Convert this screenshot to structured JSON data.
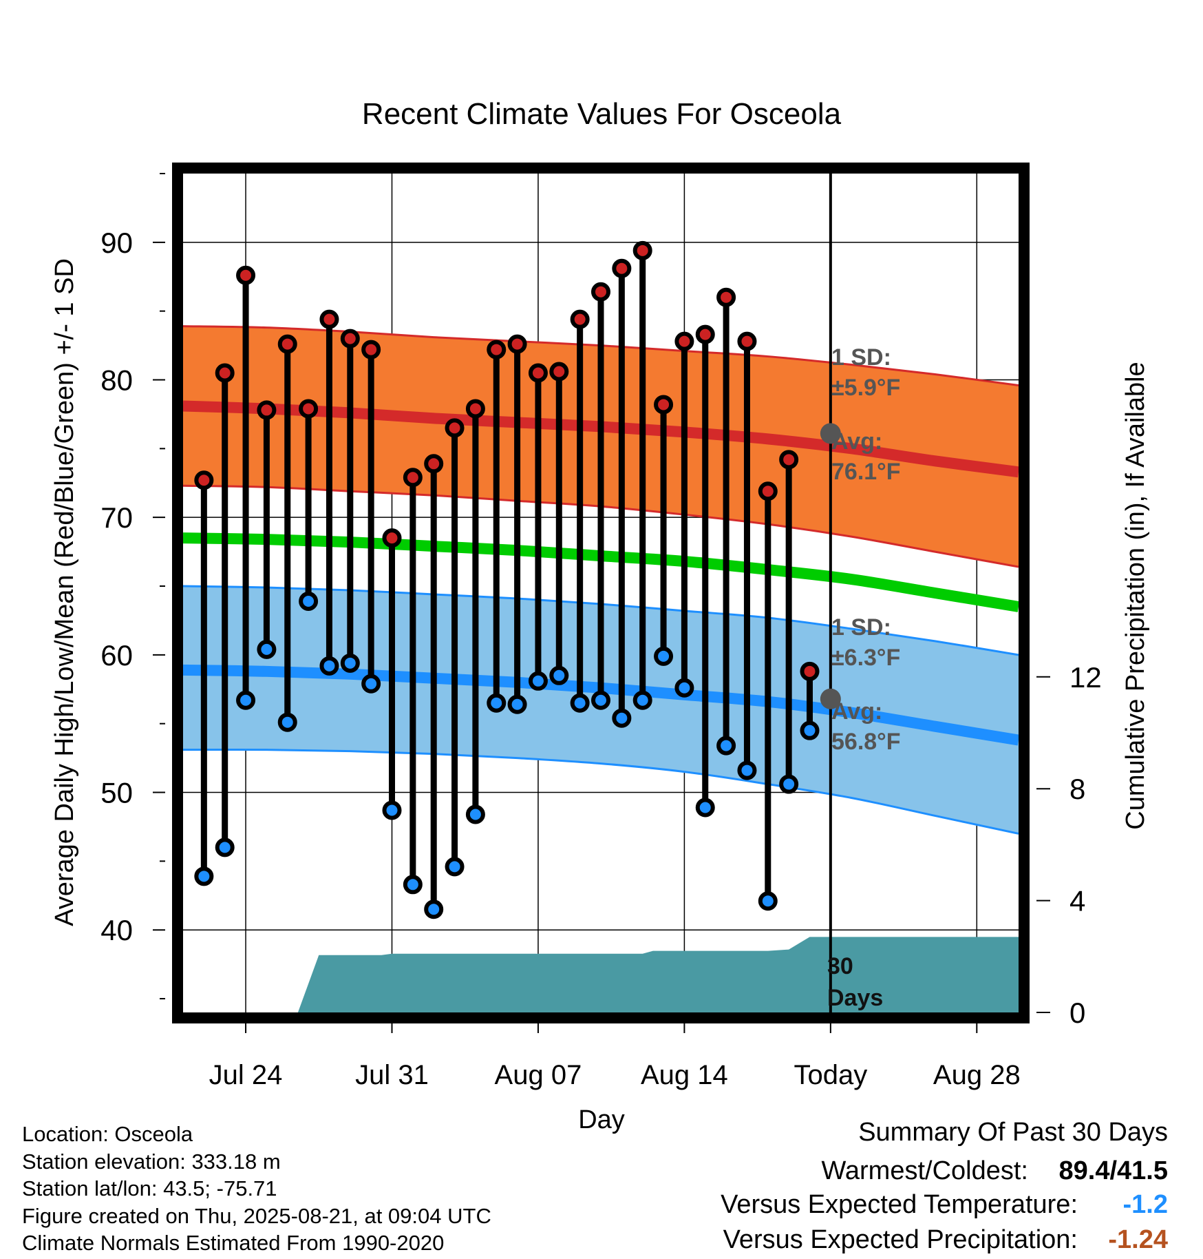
{
  "chart_data": {
    "type": "line",
    "title": "Recent Climate Values For Osceola",
    "xlabel": "Day",
    "ylabel": "Average Daily High/Low/Mean (Red/Blue/Green) +/- 1 SD",
    "y2label": "Cumulative Precipitation (in), If Available",
    "ylim": [
      34,
      95
    ],
    "y2lim": [
      0,
      30
    ],
    "y_ticks": [
      40,
      50,
      60,
      70,
      80,
      90
    ],
    "y2_ticks": [
      0,
      4,
      8,
      12
    ],
    "x_range_days": [
      0,
      40
    ],
    "x_ticks": [
      {
        "day": 3,
        "label": "Jul 24"
      },
      {
        "day": 10,
        "label": "Jul 31"
      },
      {
        "day": 17,
        "label": "Aug 07"
      },
      {
        "day": 24,
        "label": "Aug 14"
      },
      {
        "day": 31,
        "label": "Today"
      },
      {
        "day": 38,
        "label": "Aug 28"
      }
    ],
    "today_day": 31,
    "daily_days": [
      1,
      2,
      3,
      4,
      5,
      6,
      7,
      8,
      9,
      10,
      11,
      12,
      13,
      14,
      15,
      16,
      17,
      18,
      19,
      20,
      21,
      22,
      23,
      24,
      25,
      26,
      27,
      28,
      29,
      30
    ],
    "daily_high": [
      72.7,
      80.5,
      87.6,
      77.8,
      82.6,
      77.9,
      84.4,
      83.0,
      82.2,
      68.5,
      72.9,
      73.9,
      76.5,
      77.9,
      82.2,
      82.6,
      80.5,
      80.6,
      84.4,
      86.4,
      88.1,
      89.4,
      78.2,
      82.8,
      83.3,
      86.0,
      82.8,
      71.9,
      74.2,
      58.8
    ],
    "daily_low": [
      43.9,
      46.0,
      56.7,
      60.4,
      55.1,
      63.9,
      59.2,
      59.4,
      57.9,
      48.7,
      43.3,
      41.5,
      44.6,
      48.4,
      56.5,
      56.4,
      58.1,
      58.5,
      56.5,
      56.7,
      55.4,
      56.7,
      59.9,
      57.6,
      48.9,
      53.4,
      51.6,
      42.1,
      50.6,
      54.5
    ],
    "normals": {
      "days": [
        0,
        4,
        8,
        12,
        16,
        20,
        24,
        28,
        32,
        36,
        40
      ],
      "avg_high": [
        78.1,
        77.9,
        77.6,
        77.2,
        76.9,
        76.6,
        76.2,
        75.7,
        75.0,
        74.1,
        73.3
      ],
      "high_sd_upper": [
        83.9,
        83.8,
        83.5,
        83.1,
        82.8,
        82.5,
        82.1,
        81.7,
        81.1,
        80.4,
        79.6
      ],
      "high_sd_lower": [
        72.3,
        72.2,
        71.9,
        71.6,
        71.2,
        70.8,
        70.2,
        69.5,
        68.6,
        67.5,
        66.4
      ],
      "avg_mean": [
        68.5,
        68.4,
        68.2,
        67.9,
        67.6,
        67.2,
        66.8,
        66.2,
        65.5,
        64.5,
        63.5
      ],
      "avg_low": [
        58.9,
        58.8,
        58.6,
        58.3,
        58.0,
        57.6,
        57.1,
        56.6,
        55.8,
        54.8,
        53.8
      ],
      "low_sd_upper": [
        65.0,
        64.9,
        64.7,
        64.4,
        64.1,
        63.7,
        63.2,
        62.7,
        61.9,
        61.0,
        60.0
      ],
      "low_sd_lower": [
        53.1,
        53.1,
        53.0,
        52.8,
        52.5,
        52.1,
        51.5,
        50.6,
        49.6,
        48.3,
        47.0
      ]
    },
    "precipitation": {
      "days": [
        5.5,
        6.5,
        9.5,
        10.0,
        22.0,
        22.5,
        28.0,
        29.0,
        30.0,
        31.0,
        40.0
      ],
      "cumulative_in": [
        0,
        2.05,
        2.05,
        2.1,
        2.1,
        2.2,
        2.2,
        2.25,
        2.7,
        2.7,
        2.7
      ]
    },
    "annotations": {
      "high_sd_label": "1 SD:",
      "high_sd_value": "±5.9°F",
      "high_avg_label": "Avg:",
      "high_avg_value": "76.1°F",
      "low_sd_label": "1 SD:",
      "low_sd_value": "±6.3°F",
      "low_avg_label": "Avg:",
      "low_avg_value": "56.8°F",
      "today_avg_high": 76.1,
      "today_avg_low": 56.8,
      "period_line1": "30",
      "period_line2": "Days"
    },
    "colors": {
      "high_band": "#f47a30",
      "high_line": "#d42a2a",
      "mean_line": "#00cc00",
      "low_band": "#87c3ea",
      "low_line": "#1e8fff",
      "precip": "#4a9aa3",
      "high_marker": "#cc2222",
      "low_marker": "#1e8fff",
      "today_marker": "#555555"
    }
  },
  "info": {
    "location": "Location: Osceola",
    "elevation": "Station elevation: 333.18 m",
    "latlon": "Station lat/lon: 43.5; -75.71",
    "created": "Figure created on Thu, 2025-08-21, at 09:04 UTC",
    "normals": "Climate Normals Estimated From 1990-2020"
  },
  "summary": {
    "title": "Summary Of Past 30 Days",
    "warm_cold_label": "Warmest/Coldest:",
    "warm_cold_value": "89.4/41.5",
    "temp_label": "Versus Expected Temperature:",
    "temp_value": "-1.2",
    "temp_color": "#1e8fff",
    "precip_label": "Versus Expected Precipitation:",
    "precip_value": "-1.24",
    "precip_color": "#b5521f"
  }
}
